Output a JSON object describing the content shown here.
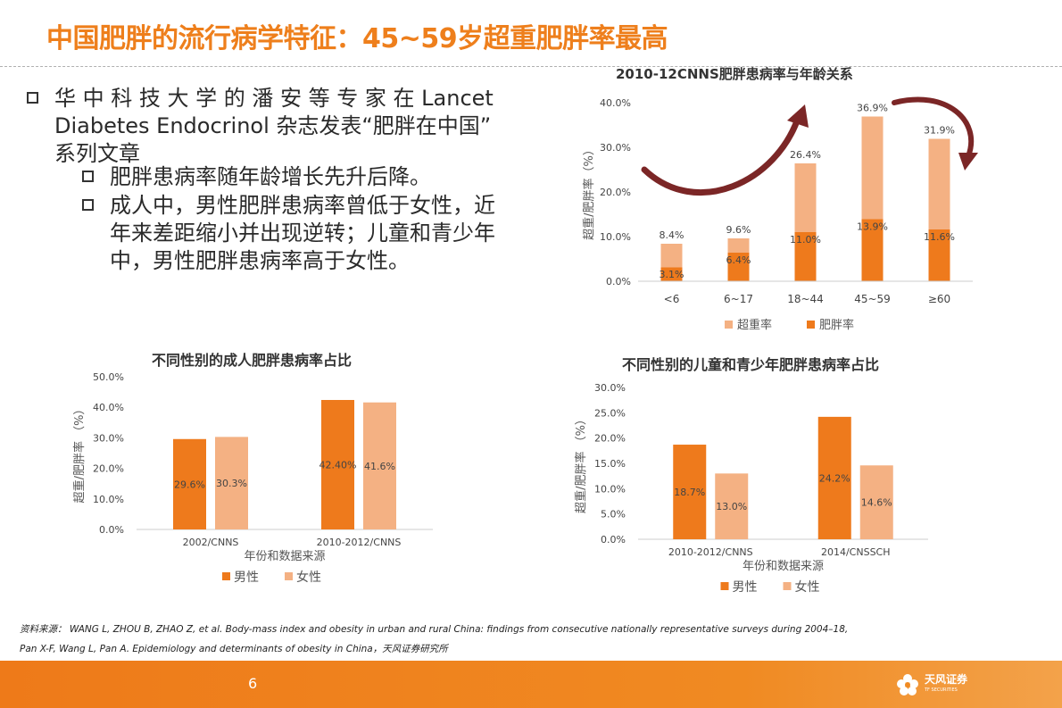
{
  "title": "中国肥胖的流行病学特征：45~59岁超重肥胖率最高",
  "bullets": {
    "main": "华中科技大学的潘安等专家在 Lancet Diabetes Endocrinol 杂志发表“肥胖在中国”系列文章",
    "main_lines": [
      "华 中 科 技 大 学 的 潘 安 等 专 家 在   Lancet",
      "Diabetes  Endocrinol  杂志发表“肥胖在中国”",
      "系列文章"
    ],
    "sub1": "肥胖患病率随年龄增长先升后降。",
    "sub2_lines": [
      "成人中，男性肥胖患病率曾低于女性，近",
      "年来差距缩小并出现逆转；儿童和青少年",
      "中，男性肥胖患病率高于女性。"
    ]
  },
  "colors": {
    "dark_orange": "#ee7a1c",
    "light_orange": "#f4b183",
    "arrow": "#7b2626"
  },
  "chart_data": [
    {
      "type": "bar",
      "title": "2010-12CNNS肥胖患病率与年龄关系",
      "ylabel": "超重/肥胖率（%）",
      "xlabel": "",
      "ylim": [
        0,
        40
      ],
      "y_ticks": [
        "0.0%",
        "10.0%",
        "20.0%",
        "30.0%",
        "40.0%"
      ],
      "categories": [
        "<6",
        "6~17",
        "18~44",
        "45~59",
        "≥60"
      ],
      "series": [
        {
          "name": "肥胖率",
          "values": [
            3.1,
            6.4,
            11.0,
            13.9,
            11.6
          ],
          "labels": [
            "3.1%",
            "6.4%",
            "11.0%",
            "13.9%",
            "11.6%"
          ]
        },
        {
          "name": "超重率",
          "values": [
            8.4,
            9.6,
            26.4,
            36.9,
            31.9
          ],
          "labels": [
            "8.4%",
            "9.6%",
            "26.4%",
            "36.9%",
            "31.9%"
          ]
        }
      ],
      "legend": [
        "超重率",
        "肥胖率"
      ]
    },
    {
      "type": "bar",
      "title": "不同性别的成人肥胖患病率占比",
      "ylabel": "超重/肥胖率  （%）",
      "xlabel": "年份和数据来源",
      "ylim": [
        0,
        50
      ],
      "y_ticks": [
        "0.0%",
        "10.0%",
        "20.0%",
        "30.0%",
        "40.0%",
        "50.0%"
      ],
      "categories": [
        "2002/CNNS",
        "2010-2012/CNNS"
      ],
      "series": [
        {
          "name": "男性",
          "values": [
            29.6,
            42.4
          ],
          "labels": [
            "29.6%",
            "42.40%"
          ]
        },
        {
          "name": "女性",
          "values": [
            30.3,
            41.6
          ],
          "labels": [
            "30.3%",
            "41.6%"
          ]
        }
      ],
      "legend": [
        "男性",
        "女性"
      ]
    },
    {
      "type": "bar",
      "title": "不同性别的儿童和青少年肥胖患病率占比",
      "ylabel": "超重/肥胖率  （%）",
      "xlabel": "年份和数据来源",
      "ylim": [
        0,
        30
      ],
      "y_ticks": [
        "0.0%",
        "5.0%",
        "10.0%",
        "15.0%",
        "20.0%",
        "25.0%",
        "30.0%"
      ],
      "categories": [
        "2010-2012/CNNS",
        "2014/CNSSCH"
      ],
      "series": [
        {
          "name": "男性",
          "values": [
            18.7,
            24.2
          ],
          "labels": [
            "18.7%",
            "24.2%"
          ]
        },
        {
          "name": "女性",
          "values": [
            13.0,
            14.6
          ],
          "labels": [
            "13.0%",
            "14.6%"
          ]
        }
      ],
      "legend": [
        "男性",
        "女性"
      ]
    }
  ],
  "source": {
    "line1": "资料来源：  WANG L, ZHOU B, ZHAO Z, et al. Body-mass index and obesity in urban and rural China: findings from consecutive nationally representative surveys during 2004–18,",
    "line2": "Pan X-F, Wang L, Pan A. Epidemiology and determinants of obesity in China，天风证券研究所"
  },
  "footer": {
    "page": "6",
    "logo_cn": "天风证券",
    "logo_en": "TF SECURITIES"
  }
}
